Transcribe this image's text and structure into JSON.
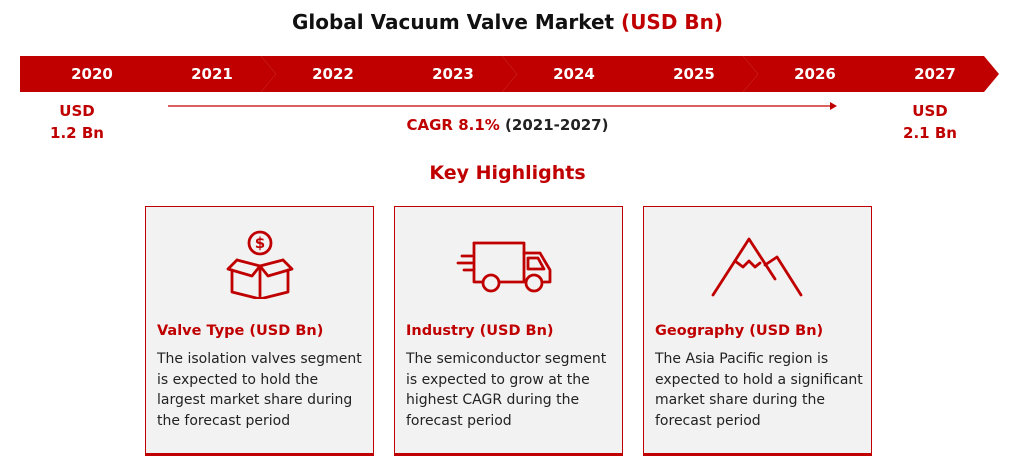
{
  "title": {
    "main": "Global Vacuum Valve Market",
    "unit": "(USD Bn)"
  },
  "timeline": {
    "years": [
      "2020",
      "2021",
      "2022",
      "2023",
      "2024",
      "2025",
      "2026",
      "2027"
    ],
    "start_value": {
      "line1": "USD",
      "line2": "1.2 Bn"
    },
    "end_value": {
      "line1": "USD",
      "line2": "2.1 Bn"
    },
    "cagr": {
      "label": "CAGR 8.1%",
      "period": "(2021-2027)"
    }
  },
  "highlights": {
    "heading": "Key Highlights",
    "cards": [
      {
        "icon": "money-box-icon",
        "title": "Valve Type (USD Bn)",
        "text": "The isolation valves segment is expected to hold the largest market share during the forecast period"
      },
      {
        "icon": "delivery-truck-icon",
        "title": "Industry (USD Bn)",
        "text": "The semiconductor segment is expected to grow at the highest CAGR during the forecast period"
      },
      {
        "icon": "mountains-icon",
        "title": "Geography (USD Bn)",
        "text": "The Asia Pacific region is expected to hold a significant market share during the forecast period"
      }
    ]
  },
  "colors": {
    "accent": "#c00000",
    "card_bg": "#f2f2f2",
    "text": "#222222"
  }
}
